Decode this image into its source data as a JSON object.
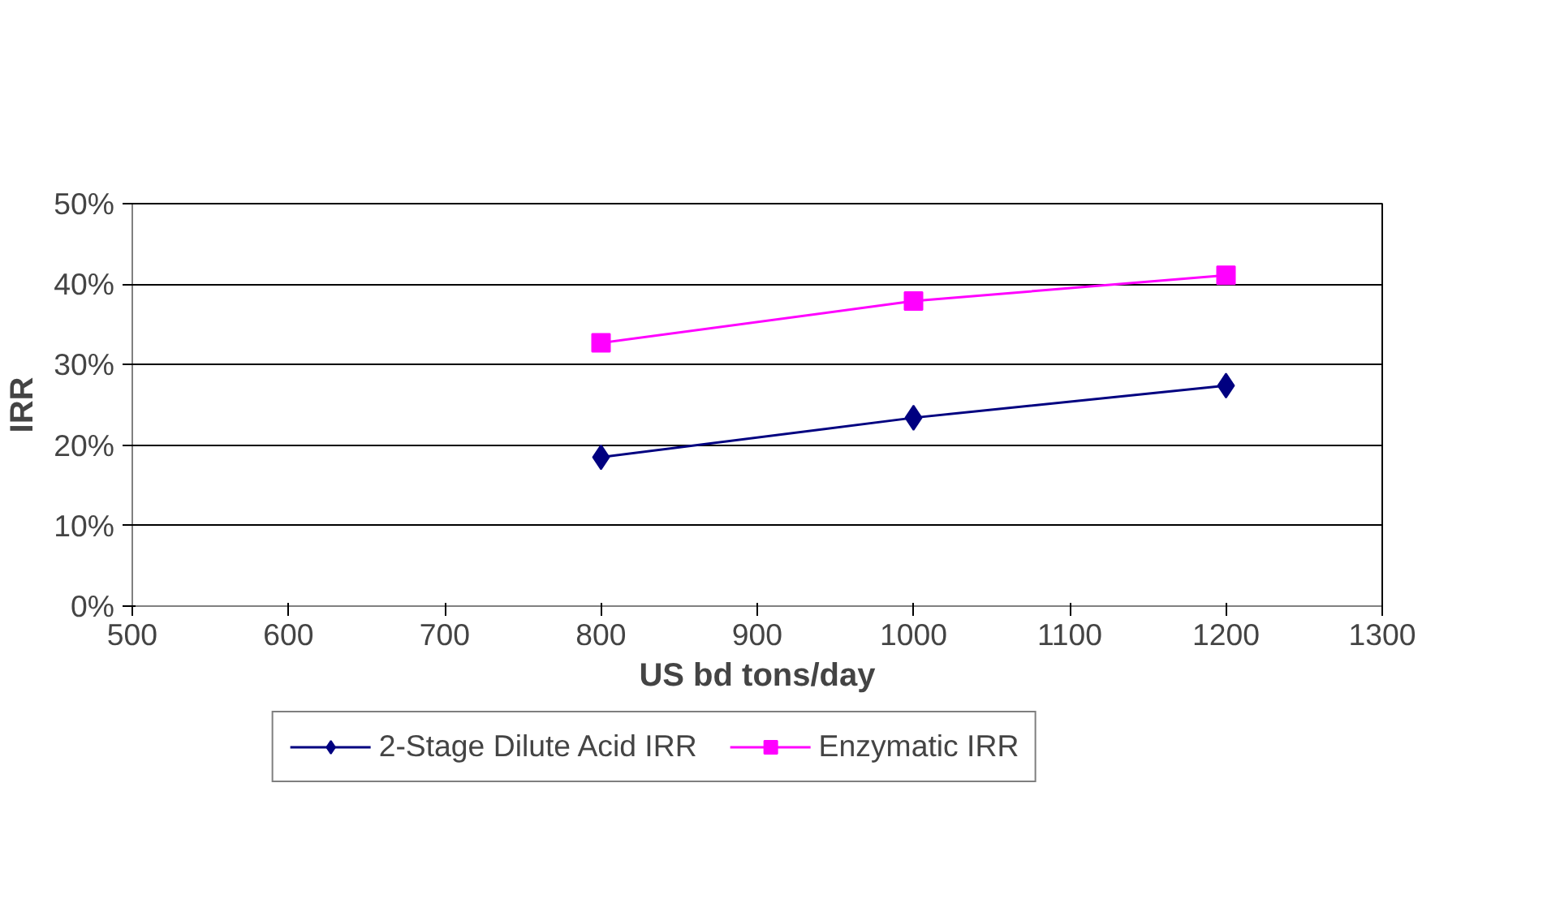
{
  "chart_data": {
    "type": "line",
    "xlabel": "US bd tons/day",
    "ylabel": "IRR",
    "x": [
      800,
      1000,
      1200
    ],
    "series": [
      {
        "name": "2-Stage Dilute Acid IRR",
        "color": "#000080",
        "marker": "diamond",
        "values": [
          18.5,
          23.4,
          27.4
        ]
      },
      {
        "name": "Enzymatic IRR",
        "color": "#ff00ff",
        "marker": "square",
        "values": [
          32.7,
          37.9,
          41.1
        ]
      }
    ],
    "xlim": [
      500,
      1300
    ],
    "xticks": [
      500,
      600,
      700,
      800,
      900,
      1000,
      1100,
      1200,
      1300
    ],
    "ylim": [
      0,
      50
    ],
    "yticks": [
      {
        "value": 0,
        "label": "0%"
      },
      {
        "value": 10,
        "label": "10%"
      },
      {
        "value": 20,
        "label": "20%"
      },
      {
        "value": 30,
        "label": "30%"
      },
      {
        "value": 40,
        "label": "40%"
      },
      {
        "value": 50,
        "label": "50%"
      }
    ],
    "grid": "y",
    "legend": "bottom",
    "line_style": "solid"
  }
}
